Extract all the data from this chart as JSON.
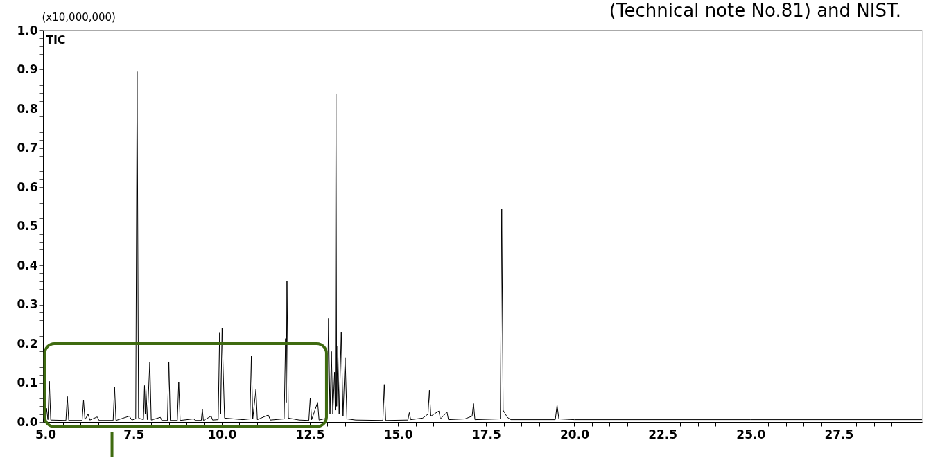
{
  "chart_data": {
    "type": "line",
    "ylabel": "(x10,000,000)",
    "annotations": [
      "TIC",
      "(Technical note No.81) and NIST."
    ],
    "xlim": [
      4.93,
      29.86
    ],
    "ylim": [
      0.0,
      1.0
    ],
    "xticks": [
      {
        "value": 5.0,
        "label": "5.0"
      },
      {
        "value": 5.5,
        "label": null
      },
      {
        "value": 6.0,
        "label": null
      },
      {
        "value": 6.5,
        "label": null
      },
      {
        "value": 7.0,
        "label": null
      },
      7.5,
      {
        "value": 8.0,
        "label": null
      },
      {
        "value": 8.5,
        "label": null
      },
      {
        "value": 9.0,
        "label": null
      },
      {
        "value": 9.5,
        "label": null
      },
      {
        "value": 10.0,
        "label": "10.0"
      },
      {
        "value": 10.5,
        "label": null
      },
      {
        "value": 11.0,
        "label": null
      },
      {
        "value": 11.5,
        "label": null
      },
      {
        "value": 12.0,
        "label": null
      },
      12.5,
      {
        "value": 13.0,
        "label": null
      },
      {
        "value": 13.5,
        "label": null
      },
      {
        "value": 14.0,
        "label": null
      },
      {
        "value": 14.5,
        "label": null
      },
      {
        "value": 15.0,
        "label": "15.0"
      },
      {
        "value": 15.5,
        "label": null
      },
      {
        "value": 16.0,
        "label": null
      },
      {
        "value": 16.5,
        "label": null
      },
      {
        "value": 17.0,
        "label": null
      },
      17.5,
      {
        "value": 18.0,
        "label": null
      },
      {
        "value": 18.5,
        "label": null
      },
      {
        "value": 19.0,
        "label": null
      },
      {
        "value": 19.5,
        "label": null
      },
      {
        "value": 20.0,
        "label": "20.0"
      },
      {
        "value": 20.5,
        "label": null
      },
      {
        "value": 21.0,
        "label": null
      },
      {
        "value": 21.5,
        "label": null
      },
      {
        "value": 22.0,
        "label": null
      },
      22.5,
      {
        "value": 23.0,
        "label": null
      },
      {
        "value": 23.5,
        "label": null
      },
      {
        "value": 24.0,
        "label": null
      },
      {
        "value": 24.5,
        "label": null
      },
      {
        "value": 25.0,
        "label": "25.0"
      },
      {
        "value": 25.5,
        "label": null
      },
      {
        "value": 26.0,
        "label": null
      },
      {
        "value": 26.5,
        "label": null
      },
      {
        "value": 27.0,
        "label": null
      },
      27.5,
      {
        "value": 28.0,
        "label": null
      },
      {
        "value": 28.5,
        "label": null
      },
      {
        "value": 29.0,
        "label": null
      },
      {
        "value": 29.5,
        "label": null
      }
    ],
    "yticks": [
      {
        "value": 0.0,
        "label": "0.0"
      },
      {
        "value": 0.02,
        "label": null
      },
      {
        "value": 0.04,
        "label": null
      },
      {
        "value": 0.06,
        "label": null
      },
      {
        "value": 0.08,
        "label": null
      },
      0.1,
      {
        "value": 0.12,
        "label": null
      },
      {
        "value": 0.14,
        "label": null
      },
      {
        "value": 0.16,
        "label": null
      },
      {
        "value": 0.18,
        "label": null
      },
      0.2,
      {
        "value": 0.22,
        "label": null
      },
      {
        "value": 0.24,
        "label": null
      },
      {
        "value": 0.26,
        "label": null
      },
      {
        "value": 0.28,
        "label": null
      },
      0.3,
      {
        "value": 0.32,
        "label": null
      },
      {
        "value": 0.34,
        "label": null
      },
      {
        "value": 0.36,
        "label": null
      },
      {
        "value": 0.38,
        "label": null
      },
      0.4,
      {
        "value": 0.42,
        "label": null
      },
      {
        "value": 0.44,
        "label": null
      },
      {
        "value": 0.46,
        "label": null
      },
      {
        "value": 0.48,
        "label": null
      },
      0.5,
      {
        "value": 0.52,
        "label": null
      },
      {
        "value": 0.54,
        "label": null
      },
      {
        "value": 0.56,
        "label": null
      },
      {
        "value": 0.58,
        "label": null
      },
      0.6,
      {
        "value": 0.62,
        "label": null
      },
      {
        "value": 0.64,
        "label": null
      },
      {
        "value": 0.66,
        "label": null
      },
      {
        "value": 0.68,
        "label": null
      },
      0.7,
      {
        "value": 0.72,
        "label": null
      },
      {
        "value": 0.74,
        "label": null
      },
      {
        "value": 0.76,
        "label": null
      },
      {
        "value": 0.78,
        "label": null
      },
      0.8,
      {
        "value": 0.82,
        "label": null
      },
      {
        "value": 0.84,
        "label": null
      },
      {
        "value": 0.86,
        "label": null
      },
      {
        "value": 0.88,
        "label": null
      },
      0.9,
      {
        "value": 0.92,
        "label": null
      },
      {
        "value": 0.94,
        "label": null
      },
      {
        "value": 0.96,
        "label": null
      },
      {
        "value": 0.98,
        "label": null
      },
      {
        "value": 1.0,
        "label": "1.0"
      }
    ],
    "series": [
      {
        "color": "#000000",
        "x": [
          4.93,
          5.0,
          5.03,
          5.07,
          5.11,
          5.15,
          5.58,
          5.62,
          5.66,
          6.04,
          6.08,
          6.12,
          6.21,
          6.26,
          6.47,
          6.52,
          6.92,
          6.96,
          7.0,
          7.38,
          7.45,
          7.56,
          7.6,
          7.64,
          7.78,
          7.81,
          7.83,
          7.85,
          7.89,
          7.96,
          8.0,
          8.26,
          8.3,
          8.46,
          8.5,
          8.54,
          8.74,
          8.78,
          8.82,
          9.2,
          9.25,
          9.42,
          9.45,
          9.48,
          9.7,
          9.74,
          9.9,
          9.94,
          9.97,
          10.01,
          10.04,
          10.08,
          10.6,
          10.8,
          10.84,
          10.88,
          10.97,
          11.01,
          11.32,
          11.38,
          11.77,
          11.81,
          11.83,
          11.85,
          11.89,
          12.2,
          12.47,
          12.51,
          12.55,
          12.72,
          12.76,
          12.99,
          13.03,
          13.07,
          13.11,
          13.15,
          13.2,
          13.22,
          13.24,
          13.26,
          13.29,
          13.33,
          13.39,
          13.44,
          13.5,
          13.55,
          13.8,
          14.57,
          14.61,
          14.65,
          15.28,
          15.32,
          15.36,
          15.7,
          15.85,
          15.89,
          15.93,
          16.16,
          16.2,
          16.39,
          16.43,
          16.9,
          17.1,
          17.14,
          17.18,
          17.9,
          17.94,
          17.98,
          18.1,
          18.2,
          19.46,
          19.51,
          19.56,
          20.0,
          25.0,
          29.86
        ],
        "values": [
          0.003,
          0.004,
          0.035,
          0.006,
          0.104,
          0.005,
          0.004,
          0.065,
          0.004,
          0.004,
          0.056,
          0.006,
          0.02,
          0.005,
          0.013,
          0.004,
          0.004,
          0.09,
          0.004,
          0.015,
          0.005,
          0.008,
          0.895,
          0.01,
          0.006,
          0.093,
          0.02,
          0.085,
          0.006,
          0.154,
          0.005,
          0.012,
          0.004,
          0.004,
          0.154,
          0.004,
          0.004,
          0.102,
          0.004,
          0.008,
          0.004,
          0.004,
          0.032,
          0.004,
          0.015,
          0.005,
          0.006,
          0.229,
          0.02,
          0.24,
          0.135,
          0.01,
          0.006,
          0.008,
          0.168,
          0.008,
          0.083,
          0.006,
          0.018,
          0.005,
          0.008,
          0.213,
          0.05,
          0.361,
          0.01,
          0.005,
          0.004,
          0.061,
          0.006,
          0.05,
          0.005,
          0.01,
          0.265,
          0.02,
          0.18,
          0.02,
          0.127,
          0.03,
          0.839,
          0.04,
          0.193,
          0.02,
          0.23,
          0.015,
          0.165,
          0.008,
          0.005,
          0.004,
          0.096,
          0.004,
          0.005,
          0.024,
          0.006,
          0.01,
          0.02,
          0.081,
          0.015,
          0.028,
          0.008,
          0.025,
          0.006,
          0.008,
          0.015,
          0.047,
          0.006,
          0.008,
          0.544,
          0.03,
          0.012,
          0.006,
          0.006,
          0.043,
          0.008,
          0.006,
          0.006,
          0.006
        ]
      }
    ]
  }
}
